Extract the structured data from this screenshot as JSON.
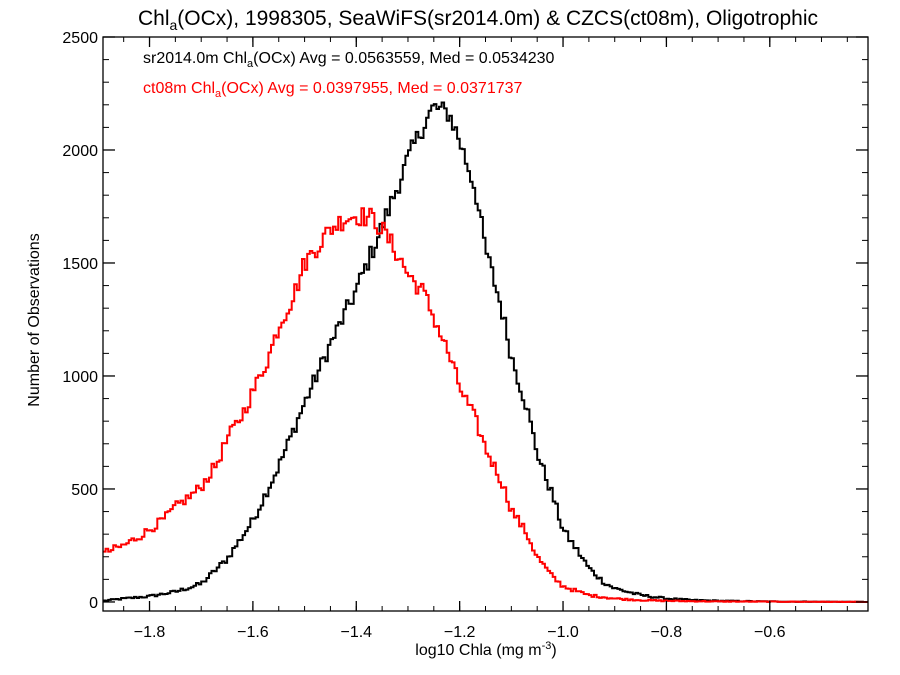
{
  "chart_data": {
    "type": "line",
    "title": {
      "main": "Chl",
      "sub": "a",
      "rest": "(OCx), 1998305, SeaWiFS(sr2014.0m) & CZCS(ct08m), Oligotrophic"
    },
    "xlabel": {
      "main": "log10 Chla (mg m",
      "sup": "-3",
      "end": ")"
    },
    "ylabel": "Number of Observations",
    "xlim": [
      -1.89,
      -0.41
    ],
    "ylim": [
      -40,
      2500
    ],
    "xticks": [
      -1.8,
      -1.6,
      -1.4,
      -1.2,
      -1.0,
      -0.8,
      -0.6
    ],
    "xtick_labels": [
      "−1.8",
      "−1.6",
      "−1.4",
      "−1.2",
      "−1.0",
      "−0.8",
      "−0.6"
    ],
    "yticks": [
      0,
      500,
      1000,
      1500,
      2000,
      2500
    ],
    "ytick_labels": [
      "0",
      "500",
      "1000",
      "1500",
      "2000",
      "2500"
    ],
    "grid": false,
    "series": [
      {
        "color": "#000000",
        "annotation": {
          "pre": "sr2014.0m Chl",
          "sub": "a",
          "post": "(OCx) Avg = 0.0563559, Med = 0.0534230"
        },
        "points": [
          [
            -1.89,
            5
          ],
          [
            -1.85,
            15
          ],
          [
            -1.8,
            25
          ],
          [
            -1.75,
            45
          ],
          [
            -1.7,
            80
          ],
          [
            -1.65,
            190
          ],
          [
            -1.6,
            360
          ],
          [
            -1.55,
            600
          ],
          [
            -1.5,
            880
          ],
          [
            -1.45,
            1140
          ],
          [
            -1.4,
            1380
          ],
          [
            -1.35,
            1660
          ],
          [
            -1.3,
            1960
          ],
          [
            -1.27,
            2110
          ],
          [
            -1.25,
            2190
          ],
          [
            -1.22,
            2160
          ],
          [
            -1.2,
            2040
          ],
          [
            -1.17,
            1830
          ],
          [
            -1.15,
            1560
          ],
          [
            -1.12,
            1310
          ],
          [
            -1.1,
            1090
          ],
          [
            -1.07,
            860
          ],
          [
            -1.05,
            660
          ],
          [
            -1.02,
            470
          ],
          [
            -1.0,
            320
          ],
          [
            -0.97,
            220
          ],
          [
            -0.95,
            150
          ],
          [
            -0.92,
            85
          ],
          [
            -0.9,
            60
          ],
          [
            -0.85,
            30
          ],
          [
            -0.8,
            15
          ],
          [
            -0.75,
            8
          ],
          [
            -0.7,
            5
          ],
          [
            -0.6,
            2
          ],
          [
            -0.5,
            1
          ],
          [
            -0.41,
            0
          ]
        ]
      },
      {
        "color": "#ff0000",
        "annotation": {
          "pre": "ct08m Chl",
          "sub": "a",
          "post": "(OCx) Avg = 0.0397955, Med = 0.0371737"
        },
        "points": [
          [
            -1.89,
            215
          ],
          [
            -1.85,
            250
          ],
          [
            -1.82,
            290
          ],
          [
            -1.8,
            320
          ],
          [
            -1.77,
            370
          ],
          [
            -1.75,
            420
          ],
          [
            -1.72,
            470
          ],
          [
            -1.7,
            510
          ],
          [
            -1.67,
            610
          ],
          [
            -1.65,
            720
          ],
          [
            -1.62,
            830
          ],
          [
            -1.6,
            930
          ],
          [
            -1.57,
            1080
          ],
          [
            -1.55,
            1220
          ],
          [
            -1.52,
            1360
          ],
          [
            -1.5,
            1500
          ],
          [
            -1.47,
            1590
          ],
          [
            -1.45,
            1650
          ],
          [
            -1.42,
            1700
          ],
          [
            -1.4,
            1710
          ],
          [
            -1.37,
            1700
          ],
          [
            -1.35,
            1650
          ],
          [
            -1.32,
            1540
          ],
          [
            -1.3,
            1450
          ],
          [
            -1.27,
            1370
          ],
          [
            -1.25,
            1260
          ],
          [
            -1.22,
            1090
          ],
          [
            -1.2,
            950
          ],
          [
            -1.17,
            810
          ],
          [
            -1.15,
            680
          ],
          [
            -1.12,
            540
          ],
          [
            -1.1,
            410
          ],
          [
            -1.07,
            300
          ],
          [
            -1.05,
            200
          ],
          [
            -1.02,
            110
          ],
          [
            -1.0,
            70
          ],
          [
            -0.97,
            45
          ],
          [
            -0.95,
            30
          ],
          [
            -0.9,
            15
          ],
          [
            -0.85,
            8
          ],
          [
            -0.8,
            5
          ],
          [
            -0.7,
            2
          ],
          [
            -0.41,
            0
          ]
        ]
      }
    ]
  }
}
